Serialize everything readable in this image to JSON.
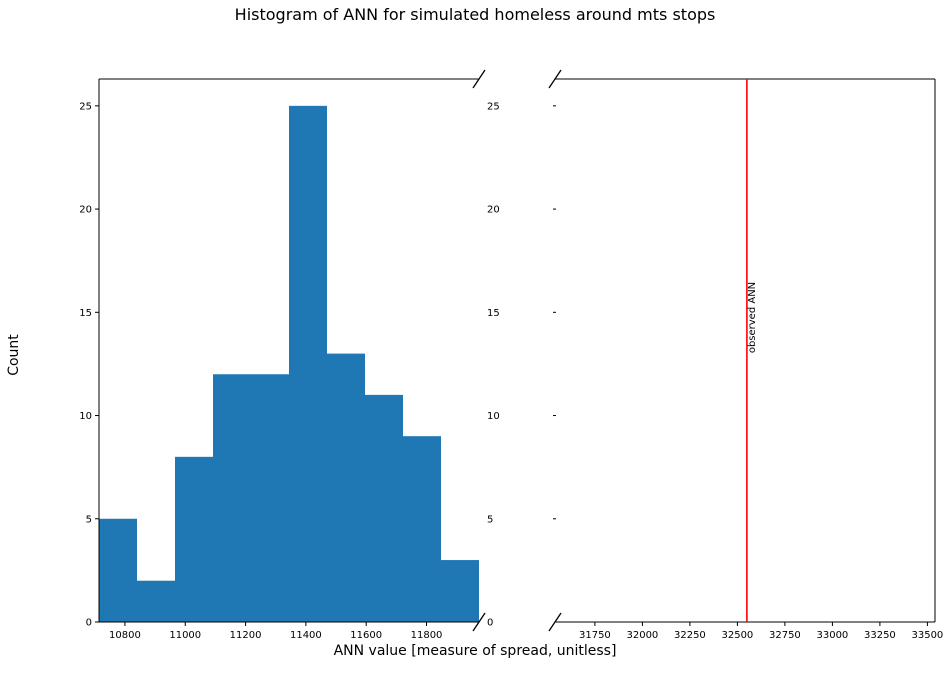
{
  "figure": {
    "title": "Histogram of ANN for simulated homeless around mts stops",
    "xlabel": "ANN value [measure of spread, unitless]",
    "ylabel": "Count"
  },
  "chart_data": [
    {
      "type": "bar",
      "panel": "left",
      "bin_edges": [
        10714,
        10840,
        10966,
        11092,
        11218,
        11344,
        11470,
        11596,
        11722,
        11848,
        11974
      ],
      "values": [
        5,
        2,
        8,
        12,
        12,
        25,
        13,
        11,
        9,
        3
      ],
      "bar_color": "#1f77b4",
      "xlim": [
        10714,
        11974
      ],
      "ylim": [
        0,
        26.3
      ],
      "xticks": [
        10800,
        11000,
        11200,
        11400,
        11600,
        11800
      ],
      "yticks": [
        0,
        5,
        10,
        15,
        20,
        25
      ],
      "grid": false
    },
    {
      "type": "line",
      "panel": "right",
      "xlim": [
        31540,
        33540
      ],
      "ylim": [
        0,
        26.3
      ],
      "xticks": [
        31750,
        32000,
        32250,
        32500,
        32750,
        33000,
        33250,
        33500
      ],
      "yticks": [
        0,
        5,
        10,
        15,
        20,
        25
      ],
      "vline": {
        "x": 32550,
        "color": "#ff0000",
        "label": "observed ANN"
      },
      "grid": false
    }
  ]
}
